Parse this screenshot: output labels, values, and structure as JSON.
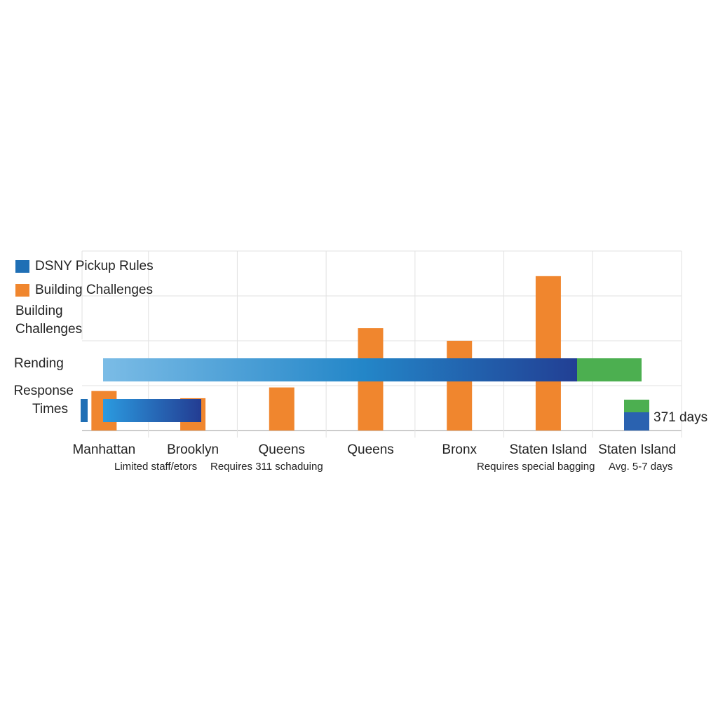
{
  "chart_data": {
    "type": "bar",
    "categories": [
      "Manhattan",
      "Brooklyn",
      "Queens",
      "Queens",
      "Bronx",
      "Staten Island",
      "Staten Island"
    ],
    "series": [
      {
        "name": "DSNY Pickup Rules",
        "color": "#1f6fb5",
        "values": [
          null,
          null,
          null,
          null,
          null,
          null,
          null
        ]
      },
      {
        "name": "Building Challenges",
        "color": "#f0862e",
        "values": [
          22,
          18,
          24,
          57,
          50,
          86,
          null
        ]
      }
    ],
    "ylim": [
      0,
      100
    ],
    "yticks": [
      0,
      25,
      50,
      75,
      100
    ],
    "grid": true,
    "row_labels": [
      "Building Challenges",
      "Rending",
      "Response Times"
    ],
    "notes": [
      "Limited staff/etors",
      "Requires 311 schaduing",
      "Requires special bagging",
      "Avg. 5-7 days"
    ],
    "annotation": "371 days"
  }
}
